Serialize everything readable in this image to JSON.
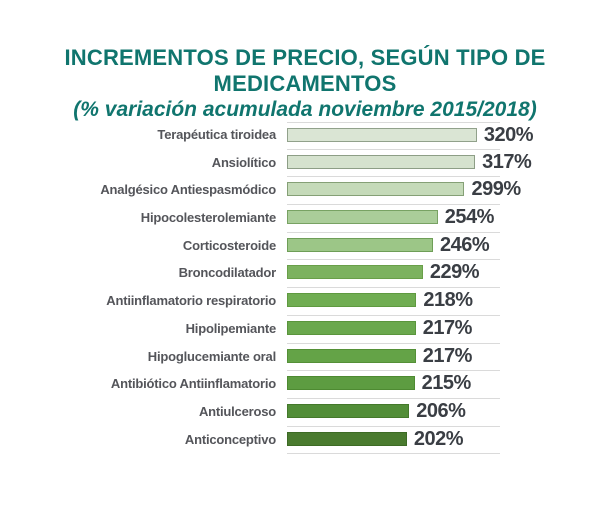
{
  "header": {
    "title_line1": "INCREMENTOS DE PRECIO, SEGÚN TIPO DE",
    "title_line2": "MEDICAMENTOS",
    "subtitle": "(% variación acumulada noviembre 2015/2018)"
  },
  "colors": {
    "title_teal": "#10756e",
    "category_label": "#54555a",
    "value_label": "#3a3e44",
    "separator": "#dadada",
    "background": "#ffffff"
  },
  "chart_data": {
    "type": "bar",
    "orientation": "horizontal",
    "title": "INCREMENTOS DE PRECIO, SEGÚN TIPO DE MEDICAMENTOS",
    "subtitle": "(% variación acumulada noviembre 2015/2018)",
    "unit": "%",
    "xlim": [
      0,
      360
    ],
    "grid": false,
    "legend_position": "none",
    "value_labels_position": "right-of-bar",
    "categories": [
      "Terapéutica tiroidea",
      "Ansiolítico",
      "Analgésico Antiespasmódico",
      "Hipocolesterolemiante",
      "Corticosteroide",
      "Broncodilatador",
      "Antiinflamatorio respiratorio",
      "Hipolipemiante",
      "Hipoglucemiante oral",
      "Antibiótico Antiinflamatorio",
      "Antiulceroso",
      "Anticonceptivo"
    ],
    "values": [
      320,
      317,
      299,
      254,
      246,
      229,
      218,
      217,
      217,
      215,
      206,
      202
    ],
    "value_labels": [
      "320%",
      "317%",
      "299%",
      "254%",
      "246%",
      "229%",
      "218%",
      "217%",
      "217%",
      "215%",
      "206%",
      "202%"
    ],
    "bar_fill_colors": [
      "#dae5d4",
      "#d5e2ce",
      "#c5dab9",
      "#aacd99",
      "#9cc687",
      "#7cb25f",
      "#70ad52",
      "#6aa84d",
      "#64a347",
      "#5d9c41",
      "#528e38",
      "#4a7b2f"
    ],
    "bar_border_colors": [
      "#91a18b",
      "#8d9e86",
      "#85a076",
      "#78a263",
      "#6e9e57",
      "#699f49",
      "#5f9a40",
      "#5a953c",
      "#549037",
      "#4e8a32",
      "#44792b",
      "#3d6b25"
    ]
  }
}
